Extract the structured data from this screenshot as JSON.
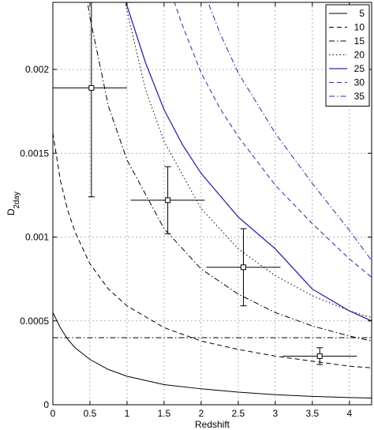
{
  "chart_data": {
    "type": "line",
    "title": "",
    "xlabel": "Redshift",
    "ylabel": "D",
    "ylabel_sub": "2day",
    "xlim": [
      0,
      4.3
    ],
    "ylim": [
      0,
      0.0024
    ],
    "grid": true,
    "legend_position": "top-right",
    "x_ticks": [
      0,
      0.5,
      1,
      1.5,
      2,
      2.5,
      3,
      3.5,
      4
    ],
    "x_tick_labels": [
      "0",
      "0.5",
      "1",
      "1.5",
      "2",
      "2.5",
      "3",
      "3.5",
      "4"
    ],
    "y_ticks": [
      0,
      0.0005,
      0.001,
      0.0015,
      0.002
    ],
    "y_tick_labels": [
      "0",
      "0.0005",
      "0.001",
      "0.0015",
      "0.002"
    ],
    "series": [
      {
        "name": "5",
        "color": "#000000",
        "dash": "solid",
        "x": [
          0.0,
          0.1,
          0.2,
          0.3,
          0.5,
          0.75,
          1.0,
          1.5,
          2.0,
          2.5,
          3.0,
          3.5,
          4.0,
          4.3
        ],
        "y": [
          0.00055,
          0.00046,
          0.00039,
          0.00034,
          0.00027,
          0.00021,
          0.00017,
          0.00012,
          9.5e-05,
          7.5e-05,
          6e-05,
          5e-05,
          4.3e-05,
          4e-05
        ]
      },
      {
        "name": "10",
        "color": "#000000",
        "dash": "dashed",
        "x": [
          0.0,
          0.1,
          0.2,
          0.3,
          0.5,
          0.75,
          1.0,
          1.5,
          2.0,
          2.5,
          3.0,
          3.5,
          4.0,
          4.3
        ],
        "y": [
          0.00162,
          0.00134,
          0.00116,
          0.00103,
          0.00084,
          0.00069,
          0.00059,
          0.00046,
          0.00038,
          0.00033,
          0.00029,
          0.00026,
          0.00023,
          0.00022
        ]
      },
      {
        "name": "15",
        "color": "#000000",
        "dash": "dashdot",
        "x": [
          0.0,
          4.3
        ],
        "y": [
          0.0004,
          0.0004
        ]
      },
      {
        "name": "15",
        "color": "#000000",
        "dash": "dashdot",
        "x": [
          0.45,
          0.5,
          0.75,
          1.0,
          1.5,
          2.0,
          2.5,
          3.0,
          3.5,
          4.0,
          4.3
        ],
        "y": [
          0.00245,
          0.00231,
          0.00178,
          0.00146,
          0.00105,
          0.00081,
          0.00066,
          0.00055,
          0.00047,
          0.00041,
          0.00038
        ]
      },
      {
        "name": "20",
        "color": "#000000",
        "dash": "dotted",
        "x": [
          0.95,
          1.0,
          1.25,
          1.5,
          2.0,
          2.5,
          3.0,
          3.5,
          4.0,
          4.3
        ],
        "y": [
          0.00245,
          0.00235,
          0.00188,
          0.00157,
          0.00117,
          0.00093,
          0.00077,
          0.00065,
          0.00056,
          0.00052
        ]
      },
      {
        "name": "25",
        "color": "#2a2aaa",
        "dash": "solid",
        "x": [
          0.95,
          1.0,
          1.25,
          1.5,
          1.75,
          2.0,
          2.5,
          3.0,
          3.5,
          4.0,
          4.3
        ],
        "y": [
          0.00245,
          0.00238,
          0.00204,
          0.00176,
          0.00155,
          0.00138,
          0.00112,
          0.00093,
          0.00069,
          0.00056,
          0.0005
        ]
      },
      {
        "name": "30",
        "color": "#2a2aaa",
        "dash": "dashed",
        "x": [
          1.6,
          1.75,
          2.0,
          2.25,
          2.5,
          3.0,
          3.5,
          4.0,
          4.3
        ],
        "y": [
          0.00245,
          0.00226,
          0.00198,
          0.00177,
          0.0016,
          0.00131,
          0.00108,
          0.00087,
          0.00076
        ]
      },
      {
        "name": "35",
        "color": "#2a2aaa",
        "dash": "dashdot",
        "x": [
          2.05,
          2.25,
          2.5,
          3.0,
          3.5,
          4.0,
          4.3
        ],
        "y": [
          0.00245,
          0.00222,
          0.00198,
          0.00162,
          0.00132,
          0.00104,
          0.00086
        ]
      }
    ],
    "data_points": [
      {
        "x": 0.52,
        "y": 0.00189,
        "xerr_low": 0.52,
        "xerr_high": 0.48,
        "y_low": 0.00124,
        "y_high": 0.0024
      },
      {
        "x": 1.55,
        "y": 0.00122,
        "xerr_low": 0.5,
        "xerr_high": 0.5,
        "y_low": 0.00102,
        "y_high": 0.00142
      },
      {
        "x": 2.57,
        "y": 0.00082,
        "xerr_low": 0.5,
        "xerr_high": 0.5,
        "y_low": 0.00059,
        "y_high": 0.00105
      },
      {
        "x": 3.6,
        "y": 0.00029,
        "xerr_low": 0.5,
        "xerr_high": 0.5,
        "y_low": 0.00024,
        "y_high": 0.00034
      }
    ]
  }
}
